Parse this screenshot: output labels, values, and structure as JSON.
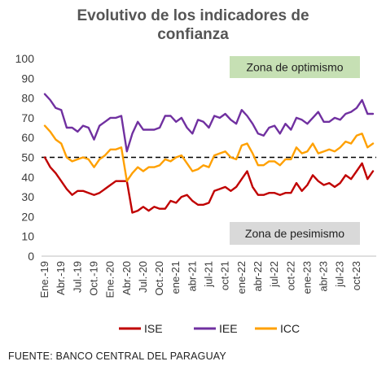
{
  "title_line1": "Evolutivo de los indicadores de",
  "title_line2": "confianza",
  "source": "FUENTE: BANCO CENTRAL DEL PARAGUAY",
  "chart_data": {
    "type": "line",
    "title": "Evolutivo de los indicadores de confianza",
    "ylim": [
      0,
      100
    ],
    "yticks": [
      0,
      10,
      20,
      30,
      40,
      50,
      60,
      70,
      80,
      90,
      100
    ],
    "x_labels": [
      "Ene.-19",
      "Abr.-19",
      "Jul.-19",
      "Oct.-19",
      "Ene.-20",
      "Abr.-20",
      "Jul.-20",
      "Oct.-20",
      "ene-21",
      "abr-21",
      "jul-21",
      "oct-21",
      "ene-22",
      "abr-22",
      "jul-22",
      "oct-22",
      "ene-23",
      "abr-23",
      "jul-23",
      "oct-23"
    ],
    "reference_line": 50,
    "zones": [
      {
        "label": "Zona de optimismo",
        "color": "#c6e0b4"
      },
      {
        "label": "Zona de pesimismo",
        "color": "#d9d9d9"
      }
    ],
    "legend_position": "bottom",
    "series": [
      {
        "name": "ISE",
        "color": "#c00000",
        "values": [
          50,
          45,
          42,
          38,
          34,
          31,
          33,
          33,
          32,
          31,
          32,
          34,
          36,
          38,
          38,
          38,
          22,
          23,
          25,
          23,
          25,
          24,
          24,
          28,
          27,
          30,
          31,
          28,
          26,
          26,
          27,
          33,
          34,
          35,
          33,
          35,
          39,
          43,
          35,
          31,
          31,
          32,
          32,
          31,
          32,
          32,
          37,
          33,
          36,
          41,
          38,
          36,
          37,
          35,
          37,
          41,
          39,
          43,
          47,
          39,
          43
        ]
      },
      {
        "name": "IEE",
        "color": "#7030a0",
        "values": [
          82,
          79,
          75,
          74,
          65,
          65,
          63,
          66,
          65,
          59,
          66,
          68,
          70,
          70,
          71,
          53,
          62,
          68,
          64,
          64,
          64,
          65,
          71,
          71,
          68,
          70,
          65,
          62,
          69,
          68,
          65,
          71,
          70,
          72,
          69,
          67,
          74,
          71,
          67,
          62,
          61,
          65,
          66,
          62,
          67,
          64,
          70,
          69,
          67,
          70,
          73,
          68,
          68,
          70,
          69,
          72,
          73,
          75,
          79,
          72,
          72
        ]
      },
      {
        "name": "ICC",
        "color": "#ffa000",
        "values": [
          66,
          63,
          59,
          57,
          50,
          48,
          49,
          50,
          49,
          45,
          49,
          51,
          54,
          54,
          55,
          38,
          42,
          45,
          43,
          45,
          45,
          46,
          49,
          48,
          50,
          51,
          47,
          43,
          44,
          46,
          45,
          51,
          52,
          53,
          50,
          49,
          56,
          57,
          52,
          46,
          46,
          48,
          48,
          46,
          49,
          49,
          55,
          52,
          53,
          57,
          52,
          53,
          54,
          53,
          55,
          58,
          57,
          61,
          62,
          55,
          57
        ]
      }
    ]
  }
}
